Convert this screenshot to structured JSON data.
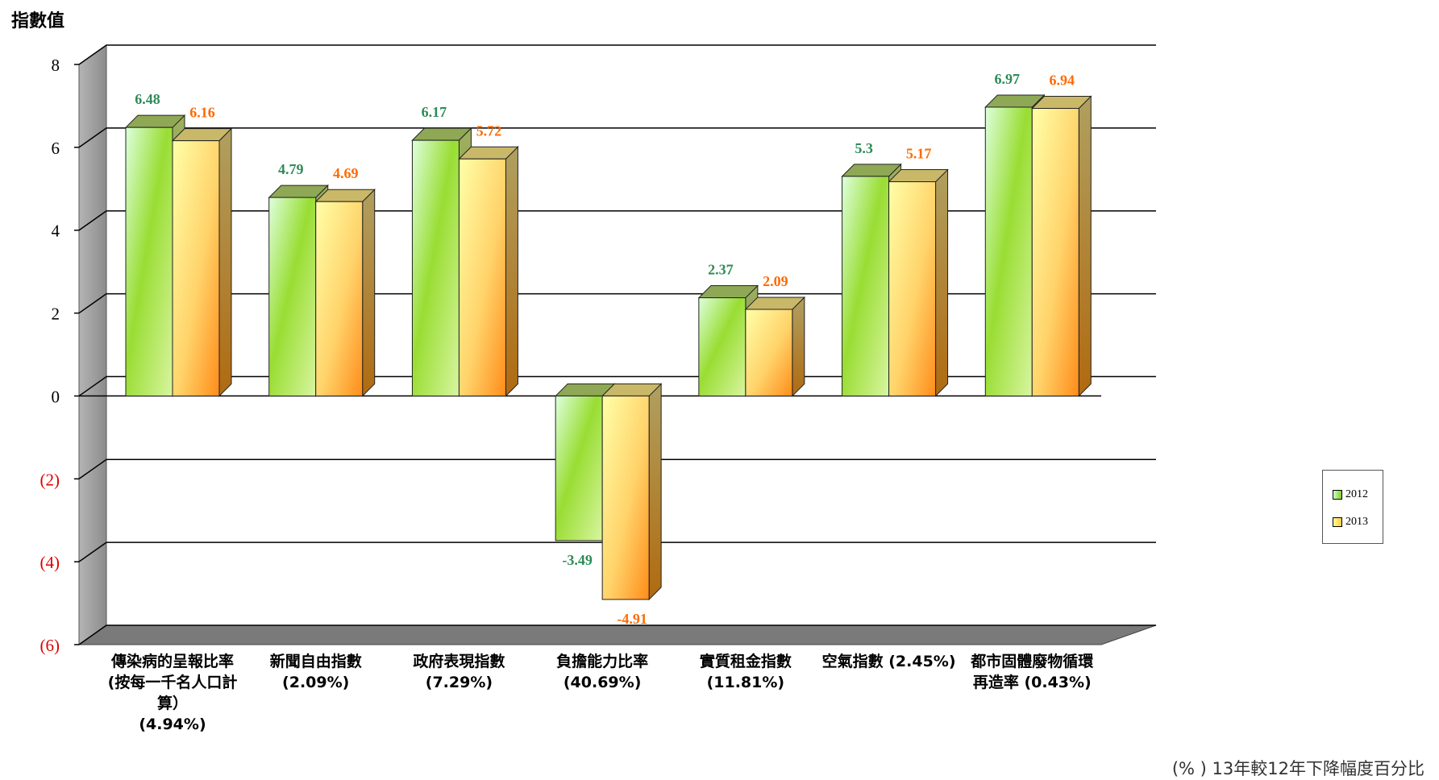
{
  "chart_data": {
    "type": "bar",
    "ylabel": "指數值",
    "ylim": [
      -6,
      8
    ],
    "yticks": [
      8,
      6,
      4,
      2,
      0,
      -2,
      -4,
      -6
    ],
    "ytick_labels": [
      "8",
      "6",
      "4",
      "2",
      "0",
      "(2)",
      "(4)",
      "(6)"
    ],
    "categories": [
      "傳染病的呈報比率\n(按每一千名人口計\n算）\n(4.94%)",
      "新聞自由指數\n(2.09%)",
      "政府表現指數\n(7.29%)",
      "負擔能力比率\n(40.69%)",
      "實質租金指數\n(11.81%)",
      "空氣指數 (2.45%)",
      "都市固體廢物循環\n再造率 (0.43%)"
    ],
    "series": [
      {
        "name": "2012",
        "values": [
          6.48,
          4.79,
          6.17,
          -3.49,
          2.37,
          5.3,
          6.97
        ],
        "labels": [
          "6.48",
          "4.79",
          "6.17",
          "-3.49",
          "2.37",
          "5.3",
          "6.97"
        ]
      },
      {
        "name": "2013",
        "values": [
          6.16,
          4.69,
          5.72,
          -4.91,
          2.09,
          5.17,
          6.94
        ],
        "labels": [
          "6.16",
          "4.69",
          "5.72",
          "-4.91",
          "2.09",
          "5.17",
          "6.94"
        ]
      }
    ],
    "grid": true,
    "legend_position": "right",
    "footnote": "(% ) 13年較12年下降幅度百分比",
    "colors": {
      "series_2012_label": "#2e8b57",
      "series_2013_label": "#ff6a00",
      "negative_tick": "#e00000",
      "wall": "#9a9a9a",
      "floor": "#7a7a7a"
    }
  }
}
